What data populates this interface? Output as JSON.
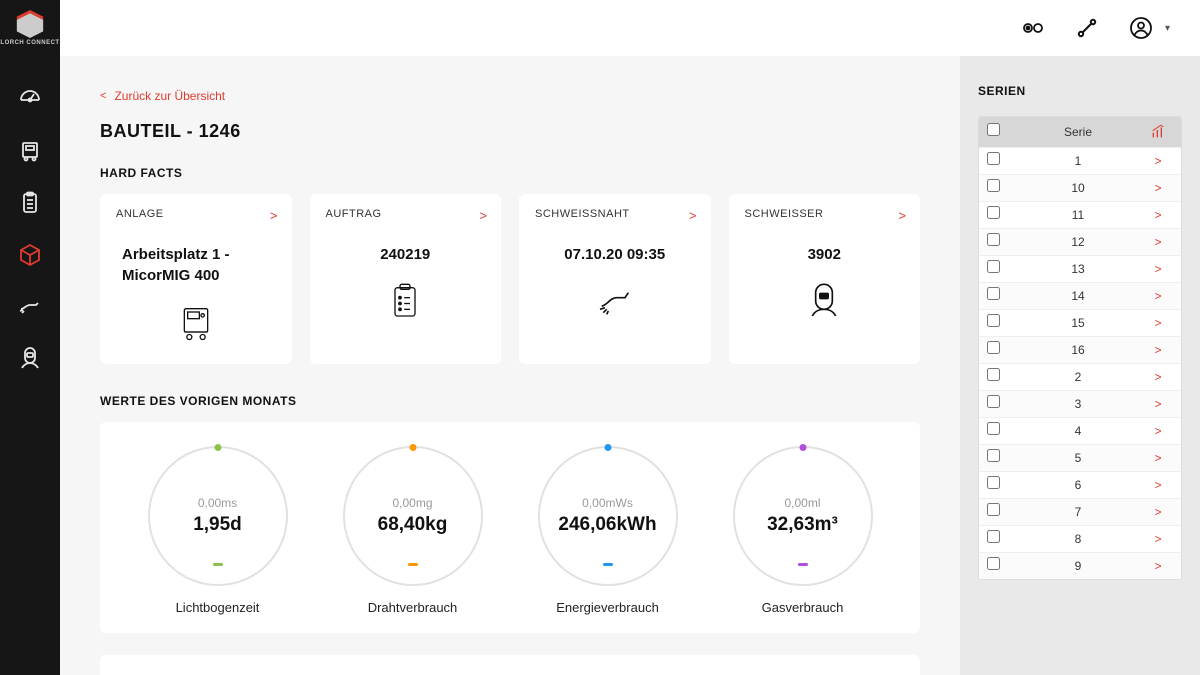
{
  "brand": "LORCH CONNECT",
  "back_link": "Zurück zur Übersicht",
  "page_title": "BAUTEIL - 1246",
  "sections": {
    "hard_facts": "HARD FACTS",
    "prev_month": "WERTE DES VORIGEN MONATS"
  },
  "facts": {
    "anlage": {
      "label": "ANLAGE",
      "value": "Arbeitsplatz 1 - MicorMIG 400"
    },
    "auftrag": {
      "label": "AUFTRAG",
      "value": "240219"
    },
    "schweissnaht": {
      "label": "SCHWEISSNAHT",
      "value": "07.10.20 09:35"
    },
    "schweisser": {
      "label": "SCHWEISSER",
      "value": "3902"
    }
  },
  "gauges": [
    {
      "small": "0,00ms",
      "big": "1,95d",
      "label": "Lichtbogenzeit",
      "color": "#8bc34a"
    },
    {
      "small": "0,00mg",
      "big": "68,40kg",
      "label": "Drahtverbrauch",
      "color": "#ff9800"
    },
    {
      "small": "0,00mWs",
      "big": "246,06kWh",
      "label": "Energieverbrauch",
      "color": "#2196f3"
    },
    {
      "small": "0,00ml",
      "big": "32,63m³",
      "label": "Gasverbrauch",
      "color": "#b34de0"
    }
  ],
  "right": {
    "title": "SERIEN",
    "header": "Serie",
    "rows": [
      "1",
      "10",
      "11",
      "12",
      "13",
      "14",
      "15",
      "16",
      "2",
      "3",
      "4",
      "5",
      "6",
      "7",
      "8",
      "9"
    ]
  },
  "colors": {
    "accent": "#e23a2e",
    "sidebar_bg": "#161616",
    "page_bg": "#f6f6f6",
    "right_bg": "#e9e9e9"
  }
}
